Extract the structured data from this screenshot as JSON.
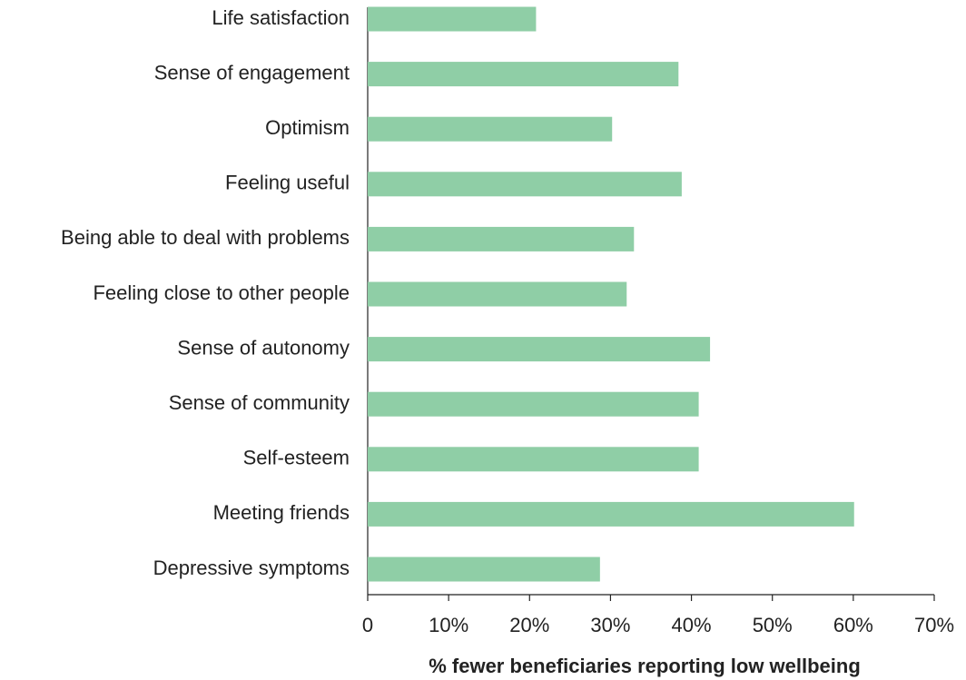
{
  "chart_data": {
    "type": "barh",
    "categories": [
      "Life satisfaction",
      "Sense of engagement",
      "Optimism",
      "Feeling useful",
      "Being able to deal with problems",
      "Feeling close to other people",
      "Sense of autonomy",
      "Sense of community",
      "Self-esteem",
      "Meeting friends",
      "Depressive symptoms"
    ],
    "values": [
      20.8,
      38.4,
      30.2,
      38.8,
      32.9,
      32.0,
      42.3,
      40.9,
      40.9,
      60.1,
      28.7
    ],
    "color": "#8fcea6",
    "xlabel": "% fewer beneficiaries reporting low wellbeing",
    "xlim": [
      0,
      70
    ],
    "xticks": [
      0,
      {
        "value": 10,
        "label": "10%"
      },
      {
        "value": 20,
        "label": "20%"
      },
      {
        "value": 30,
        "label": "30%"
      },
      {
        "value": 40,
        "label": "40%"
      },
      {
        "value": 50,
        "label": "50%"
      },
      {
        "value": 60,
        "label": "60%"
      },
      {
        "value": 70,
        "label": "70%"
      }
    ],
    "grid": false
  }
}
